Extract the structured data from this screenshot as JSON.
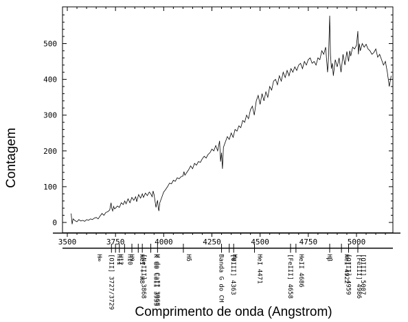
{
  "chart_data": {
    "type": "line",
    "xlabel": "Comprimento de onda (Angstrom)",
    "ylabel": "Contagem",
    "xlim": [
      3500,
      5200
    ],
    "ylim": [
      -25,
      600
    ],
    "xticks": [
      3500,
      3750,
      4000,
      4250,
      4500,
      4750,
      5000
    ],
    "yticks": [
      0,
      100,
      200,
      300,
      400,
      500
    ],
    "grid": false,
    "series": [
      {
        "x": [
          3520,
          3525,
          3530,
          3540,
          3550,
          3560,
          3570,
          3580,
          3590,
          3600,
          3610,
          3620,
          3630,
          3640,
          3650,
          3660,
          3670,
          3680,
          3690,
          3700,
          3710,
          3720,
          3727,
          3730,
          3735,
          3740,
          3745,
          3750,
          3760,
          3770,
          3780,
          3790,
          3798,
          3805,
          3815,
          3825,
          3835,
          3845,
          3855,
          3860,
          3870,
          3880,
          3889,
          3895,
          3905,
          3915,
          3925,
          3933,
          3940,
          3945,
          3950,
          3955,
          3960,
          3965,
          3968,
          3972,
          3975,
          3980,
          3990,
          4000,
          4010,
          4020,
          4030,
          4040,
          4050,
          4060,
          4070,
          4080,
          4090,
          4100,
          4105,
          4110,
          4120,
          4130,
          4140,
          4150,
          4160,
          4170,
          4180,
          4190,
          4200,
          4210,
          4220,
          4230,
          4240,
          4250,
          4260,
          4270,
          4280,
          4290,
          4295,
          4300,
          4305,
          4310,
          4320,
          4330,
          4340,
          4350,
          4360,
          4370,
          4380,
          4390,
          4400,
          4410,
          4420,
          4430,
          4440,
          4450,
          4460,
          4470,
          4480,
          4490,
          4500,
          4510,
          4520,
          4530,
          4540,
          4550,
          4560,
          4570,
          4580,
          4590,
          4600,
          4610,
          4620,
          4630,
          4640,
          4650,
          4660,
          4670,
          4680,
          4690,
          4700,
          4710,
          4720,
          4730,
          4740,
          4750,
          4760,
          4770,
          4780,
          4790,
          4800,
          4810,
          4820,
          4830,
          4840,
          4850,
          4855,
          4861,
          4865,
          4870,
          4875,
          4880,
          4890,
          4900,
          4910,
          4920,
          4930,
          4940,
          4950,
          4959,
          4965,
          4970,
          4980,
          4990,
          5000,
          5007,
          5010,
          5015,
          5020,
          5030,
          5040,
          5050,
          5060,
          5070,
          5080,
          5090,
          5100,
          5110,
          5120,
          5130,
          5140,
          5150,
          5160,
          5170,
          5180
        ],
        "values": [
          25,
          -5,
          10,
          5,
          2,
          8,
          4,
          6,
          3,
          8,
          6,
          10,
          8,
          12,
          14,
          10,
          18,
          25,
          20,
          28,
          30,
          35,
          55,
          40,
          32,
          45,
          38,
          40,
          46,
          42,
          55,
          50,
          60,
          52,
          66,
          55,
          70,
          62,
          72,
          58,
          78,
          68,
          80,
          70,
          82,
          75,
          85,
          80,
          72,
          88,
          78,
          60,
          42,
          55,
          62,
          40,
          32,
          55,
          70,
          85,
          92,
          100,
          110,
          108,
          118,
          115,
          125,
          122,
          128,
          130,
          142,
          132,
          140,
          148,
          158,
          150,
          165,
          160,
          170,
          168,
          178,
          185,
          180,
          190,
          195,
          205,
          200,
          215,
          200,
          228,
          170,
          195,
          150,
          210,
          225,
          240,
          232,
          250,
          238,
          260,
          255,
          270,
          265,
          285,
          280,
          300,
          290,
          315,
          325,
          300,
          340,
          355,
          330,
          360,
          340,
          365,
          350,
          380,
          370,
          395,
          400,
          385,
          410,
          395,
          420,
          405,
          425,
          410,
          430,
          420,
          435,
          425,
          440,
          445,
          430,
          450,
          440,
          455,
          460,
          445,
          450,
          440,
          460,
          455,
          480,
          470,
          490,
          420,
          460,
          578,
          470,
          430,
          445,
          410,
          455,
          435,
          460,
          420,
          470,
          440,
          478,
          450,
          480,
          465,
          490,
          485,
          495,
          535,
          470,
          500,
          480,
          500,
          490,
          498,
          485,
          480,
          470,
          475,
          485,
          462,
          470,
          455,
          440,
          450,
          420,
          380,
          410
        ]
      }
    ],
    "lines_axis": {
      "ticks": [
        3729,
        3750,
        3770,
        3797,
        3835,
        3868,
        3889,
        3933,
        3968,
        4102,
        4300,
        4340,
        4363,
        4471,
        4658,
        4686,
        4861,
        4922,
        4959,
        5007
      ],
      "labels": [
        {
          "x": 3729,
          "text": "[OII] 3727/3729"
        },
        {
          "x": 3750,
          "text": "H12"
        },
        {
          "x": 3770,
          "text": "H11"
        },
        {
          "x": 3797,
          "text": "H10"
        },
        {
          "x": 3835,
          "text": "H9"
        },
        {
          "x": 3868,
          "text": "[NeIII] 3868"
        },
        {
          "x": 3889,
          "text": "HeI + H8"
        },
        {
          "x": 3933,
          "text": "K do CaII 3933"
        },
        {
          "x": 3968,
          "text": "H do CaII 3968"
        },
        {
          "x": 4102,
          "text": "Hδ"
        },
        {
          "x": 4300,
          "text": "Banda G do CH"
        },
        {
          "x": 4340,
          "text": "Hγ"
        },
        {
          "x": 4363,
          "text": "[OIII] 4363"
        },
        {
          "x": 4471,
          "text": "HeI 4471"
        },
        {
          "x": 4658,
          "text": "[FeIII] 4658"
        },
        {
          "x": 4686,
          "text": "HeII 4686"
        },
        {
          "x": 4861,
          "text": "Hβ"
        },
        {
          "x": 4922,
          "text": "HeI 4922"
        },
        {
          "x": 4959,
          "text": "[OIII] 4959"
        },
        {
          "x": 5007,
          "text": "[OIII] 5007"
        },
        {
          "x": 3668,
          "text": "H∞"
        },
        {
          "x": 4986,
          "text": "[FeIII] 4986"
        }
      ]
    }
  }
}
